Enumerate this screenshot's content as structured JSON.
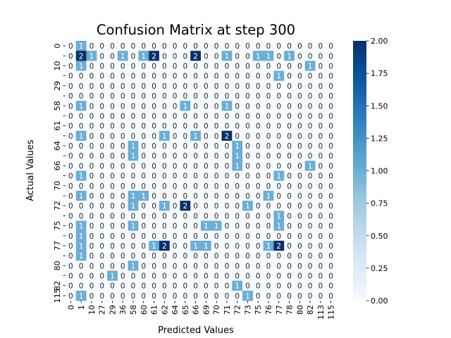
{
  "chart_data": {
    "type": "heatmap",
    "title": "Confusion Matrix at step 300",
    "xlabel": "Predicted Values",
    "ylabel": "Actual Values",
    "x_tick_labels": [
      "0",
      "1",
      "10",
      "27",
      "29",
      "36",
      "58",
      "60",
      "61",
      "62",
      "64",
      "65",
      "66",
      "69",
      "70",
      "71",
      "72",
      "73",
      "75",
      "76",
      "77",
      "78",
      "80",
      "82",
      "113",
      "115"
    ],
    "y_tick_labels": [
      "0",
      "",
      "10",
      "",
      "29",
      "",
      "58",
      "",
      "61",
      "",
      "64",
      "",
      "66",
      "",
      "70",
      "",
      "72",
      "",
      "75",
      "",
      "77",
      "",
      "80",
      "",
      "82",
      "115"
    ],
    "colorbar": {
      "min": 0.0,
      "max": 2.0,
      "ticks": [
        "0.00",
        "0.25",
        "0.50",
        "0.75",
        "1.00",
        "1.25",
        "1.50",
        "1.75",
        "2.00"
      ]
    },
    "colormap": [
      "#f7fbff",
      "#deebf7",
      "#c6dbef",
      "#9ecae1",
      "#6baed6",
      "#4292c6",
      "#2171b5",
      "#08519c",
      "#08306b"
    ],
    "matrix": [
      [
        0,
        1,
        0,
        0,
        0,
        0,
        0,
        0,
        0,
        0,
        0,
        0,
        0,
        0,
        0,
        0,
        0,
        0,
        0,
        0,
        0,
        0,
        0,
        0,
        0,
        0
      ],
      [
        0,
        2,
        1,
        0,
        0,
        1,
        0,
        1,
        2,
        0,
        0,
        0,
        2,
        0,
        0,
        1,
        0,
        0,
        1,
        1,
        0,
        1,
        0,
        0,
        0,
        0
      ],
      [
        0,
        1,
        0,
        0,
        0,
        0,
        0,
        0,
        0,
        0,
        0,
        0,
        0,
        0,
        0,
        0,
        0,
        0,
        0,
        0,
        0,
        0,
        0,
        1,
        0,
        0
      ],
      [
        0,
        0,
        0,
        0,
        0,
        0,
        0,
        0,
        0,
        0,
        0,
        0,
        0,
        0,
        0,
        0,
        0,
        0,
        0,
        0,
        1,
        0,
        0,
        0,
        0,
        0
      ],
      [
        0,
        0,
        0,
        0,
        0,
        0,
        0,
        0,
        0,
        0,
        0,
        0,
        0,
        0,
        0,
        0,
        0,
        0,
        0,
        0,
        0,
        0,
        0,
        0,
        0,
        0
      ],
      [
        0,
        0,
        0,
        0,
        0,
        0,
        0,
        0,
        0,
        0,
        0,
        0,
        0,
        0,
        0,
        0,
        0,
        0,
        0,
        0,
        0,
        0,
        0,
        0,
        0,
        0
      ],
      [
        0,
        1,
        0,
        0,
        0,
        0,
        0,
        0,
        0,
        0,
        0,
        1,
        0,
        0,
        0,
        1,
        0,
        0,
        0,
        0,
        0,
        0,
        0,
        0,
        0,
        0
      ],
      [
        0,
        0,
        0,
        0,
        0,
        0,
        0,
        0,
        0,
        0,
        0,
        0,
        0,
        0,
        0,
        0,
        0,
        0,
        0,
        0,
        0,
        0,
        0,
        0,
        0,
        0
      ],
      [
        0,
        0,
        0,
        0,
        0,
        0,
        0,
        0,
        0,
        0,
        0,
        0,
        0,
        0,
        0,
        0,
        0,
        0,
        0,
        0,
        0,
        0,
        0,
        0,
        0,
        0
      ],
      [
        0,
        1,
        0,
        0,
        0,
        0,
        0,
        0,
        0,
        1,
        0,
        0,
        1,
        0,
        0,
        2,
        0,
        0,
        0,
        0,
        0,
        0,
        0,
        0,
        0,
        0
      ],
      [
        0,
        0,
        0,
        0,
        0,
        0,
        1,
        0,
        0,
        0,
        0,
        0,
        0,
        0,
        0,
        0,
        1,
        0,
        0,
        0,
        0,
        0,
        0,
        0,
        0,
        0
      ],
      [
        0,
        0,
        0,
        0,
        0,
        0,
        1,
        0,
        0,
        0,
        0,
        0,
        0,
        0,
        0,
        0,
        1,
        0,
        0,
        0,
        0,
        0,
        0,
        0,
        0,
        0
      ],
      [
        0,
        0,
        0,
        0,
        0,
        0,
        0,
        0,
        0,
        0,
        0,
        0,
        0,
        0,
        0,
        0,
        1,
        0,
        0,
        0,
        0,
        0,
        0,
        1,
        0,
        0
      ],
      [
        0,
        1,
        0,
        0,
        0,
        0,
        0,
        0,
        0,
        0,
        0,
        0,
        0,
        0,
        0,
        0,
        0,
        0,
        0,
        0,
        1,
        0,
        0,
        0,
        0,
        0
      ],
      [
        0,
        0,
        0,
        0,
        0,
        0,
        0,
        0,
        0,
        0,
        0,
        0,
        0,
        0,
        0,
        0,
        0,
        0,
        0,
        0,
        0,
        0,
        0,
        0,
        0,
        0
      ],
      [
        0,
        1,
        0,
        0,
        0,
        0,
        1,
        1,
        0,
        0,
        0,
        0,
        0,
        0,
        0,
        0,
        0,
        0,
        0,
        1,
        0,
        0,
        0,
        0,
        0,
        0
      ],
      [
        0,
        0,
        0,
        0,
        0,
        0,
        1,
        0,
        0,
        1,
        0,
        2,
        0,
        0,
        0,
        0,
        0,
        1,
        0,
        0,
        0,
        0,
        0,
        0,
        0,
        0
      ],
      [
        0,
        0,
        0,
        0,
        0,
        0,
        0,
        0,
        0,
        0,
        0,
        0,
        0,
        0,
        0,
        0,
        0,
        0,
        0,
        0,
        1,
        0,
        0,
        0,
        0,
        0
      ],
      [
        0,
        1,
        0,
        0,
        0,
        0,
        1,
        0,
        0,
        0,
        0,
        0,
        0,
        1,
        1,
        0,
        0,
        0,
        0,
        0,
        1,
        0,
        0,
        0,
        0,
        0
      ],
      [
        0,
        1,
        0,
        0,
        0,
        0,
        0,
        0,
        0,
        0,
        0,
        0,
        0,
        0,
        0,
        0,
        0,
        0,
        0,
        0,
        0,
        0,
        0,
        0,
        0,
        0
      ],
      [
        0,
        1,
        0,
        0,
        0,
        0,
        0,
        0,
        1,
        2,
        0,
        0,
        1,
        1,
        0,
        0,
        0,
        0,
        0,
        1,
        2,
        0,
        0,
        0,
        0,
        0
      ],
      [
        0,
        1,
        0,
        0,
        0,
        0,
        0,
        0,
        0,
        0,
        0,
        0,
        0,
        0,
        0,
        0,
        0,
        0,
        0,
        0,
        0,
        0,
        0,
        0,
        0,
        0
      ],
      [
        0,
        0,
        0,
        0,
        0,
        0,
        1,
        0,
        0,
        0,
        0,
        0,
        0,
        0,
        0,
        0,
        0,
        0,
        0,
        0,
        0,
        0,
        0,
        0,
        0,
        0
      ],
      [
        0,
        0,
        0,
        0,
        1,
        0,
        0,
        0,
        0,
        0,
        0,
        0,
        0,
        0,
        0,
        0,
        0,
        0,
        0,
        0,
        0,
        0,
        0,
        0,
        0,
        0
      ],
      [
        0,
        0,
        0,
        0,
        0,
        0,
        0,
        0,
        0,
        0,
        0,
        0,
        0,
        0,
        0,
        0,
        1,
        0,
        0,
        0,
        0,
        0,
        0,
        0,
        0,
        0
      ],
      [
        0,
        1,
        0,
        0,
        0,
        0,
        0,
        0,
        0,
        0,
        0,
        0,
        0,
        0,
        0,
        0,
        0,
        1,
        0,
        0,
        0,
        0,
        0,
        0,
        0,
        0
      ]
    ]
  }
}
